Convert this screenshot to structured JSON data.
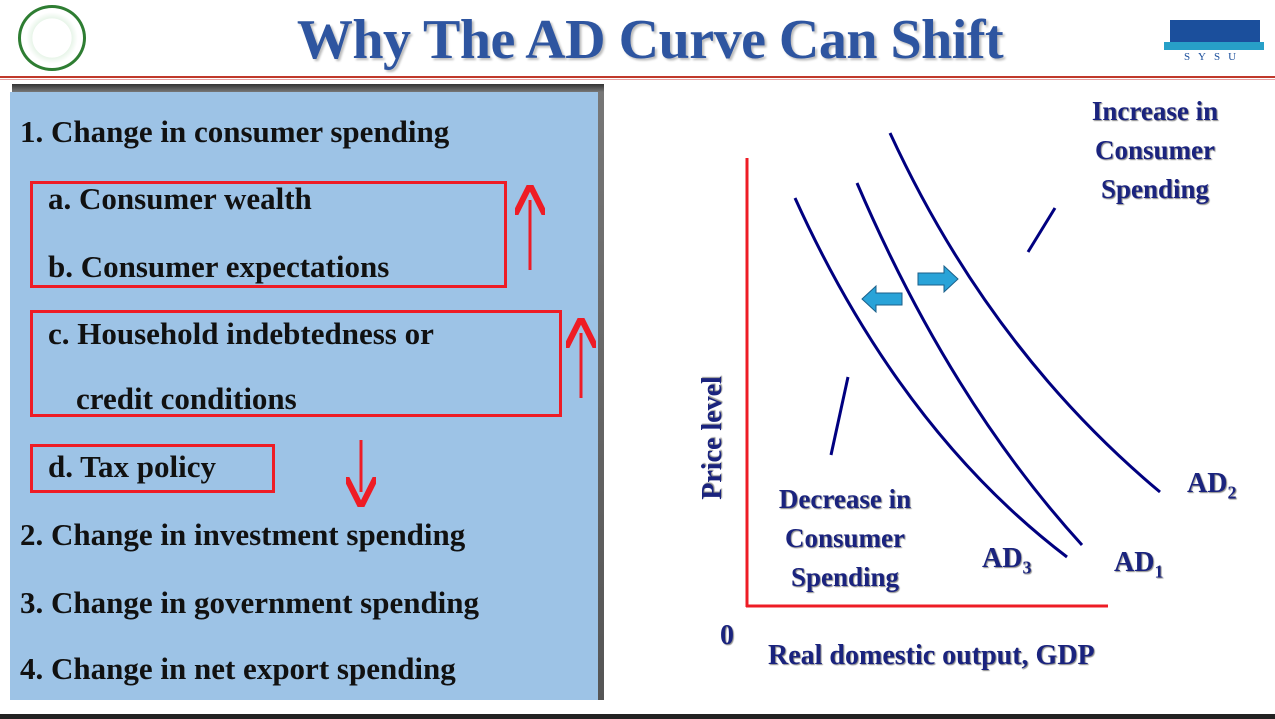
{
  "header": {
    "title": "Why The AD Curve Can Shift",
    "left_logo": "Sun Yat-sen University seal",
    "right_logo": "JSBE SYSU"
  },
  "list": {
    "item1": "1. Change in consumer spending",
    "item1a": "a. Consumer wealth",
    "item1b": "b. Consumer expectations",
    "item1c_line1": "c. Household indebtedness or",
    "item1c_line2": "credit conditions",
    "item1d": "d. Tax policy",
    "item2": "2. Change in investment spending",
    "item3": "3. Change in government spending",
    "item4": "4. Change in net export spending"
  },
  "arrows": {
    "wealth_expectations": "up",
    "indebtedness": "up",
    "tax": "down"
  },
  "diagram": {
    "y_label": "Price level",
    "x_label": "Real domestic output, GDP",
    "origin": "0",
    "increase_label": [
      "Increase in",
      "Consumer",
      "Spending"
    ],
    "decrease_label": [
      "Decrease in",
      "Consumer",
      "Spending"
    ],
    "curves": [
      {
        "name": "AD",
        "sub": "1"
      },
      {
        "name": "AD",
        "sub": "2"
      },
      {
        "name": "AD",
        "sub": "3"
      }
    ]
  },
  "colors": {
    "title": "#2e55a0",
    "panel": "#9dc3e6",
    "highlight": "#ee1c25",
    "curve": "#000080",
    "shift_arrow": "#29a3d8"
  }
}
